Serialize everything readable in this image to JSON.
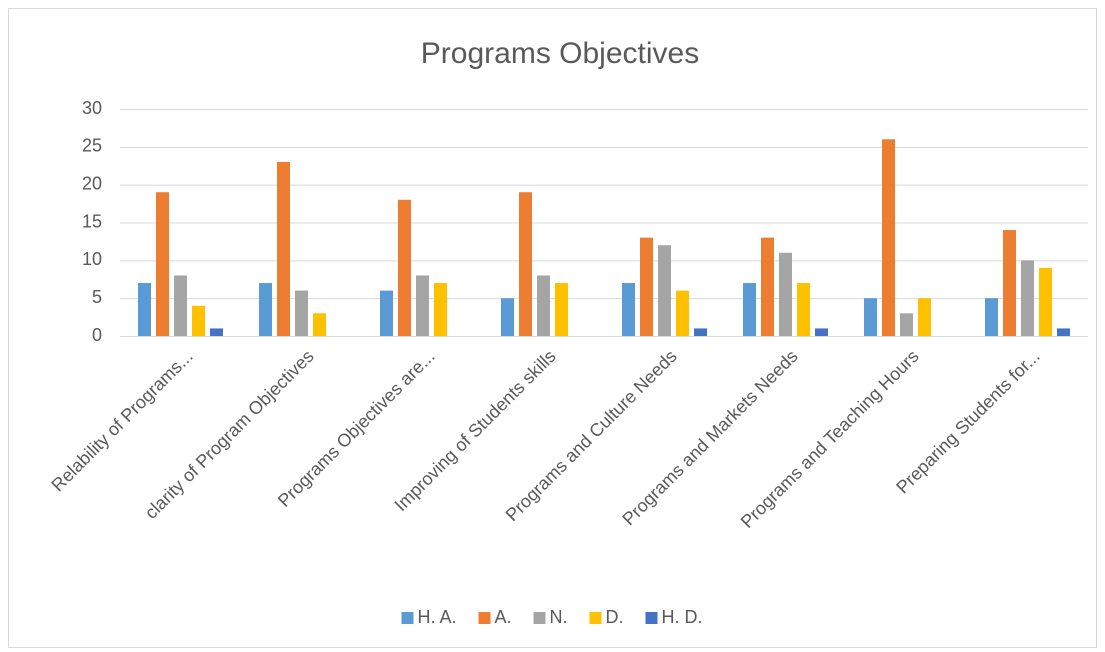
{
  "chart_data": {
    "type": "bar",
    "title": "Programs Objectives",
    "categories": [
      "Relability of Programs...",
      "clarity of Program Objectives",
      "Programs Objectives are...",
      "Improving of Students skills",
      "Programs and Culture Needs",
      "Programs and Markets Needs",
      "Programs and Teaching Hours",
      "Preparing Students for..."
    ],
    "series": [
      {
        "name": "H. A.",
        "color": "#5b9bd5",
        "values": [
          7,
          7,
          6,
          5,
          7,
          7,
          5,
          5
        ]
      },
      {
        "name": "A.",
        "color": "#ed7d31",
        "values": [
          19,
          23,
          18,
          19,
          13,
          13,
          26,
          14
        ]
      },
      {
        "name": "N.",
        "color": "#a5a5a5",
        "values": [
          8,
          6,
          8,
          8,
          12,
          11,
          3,
          10
        ]
      },
      {
        "name": "D.",
        "color": "#ffc000",
        "values": [
          4,
          3,
          7,
          7,
          6,
          7,
          5,
          9
        ]
      },
      {
        "name": "H. D.",
        "color": "#4472c4",
        "values": [
          1,
          0,
          0,
          0,
          1,
          1,
          0,
          1
        ]
      }
    ],
    "ylim": [
      0,
      30
    ],
    "yticks": [
      0,
      5,
      10,
      15,
      20,
      25,
      30
    ],
    "grid": true,
    "legend": "bottom"
  }
}
